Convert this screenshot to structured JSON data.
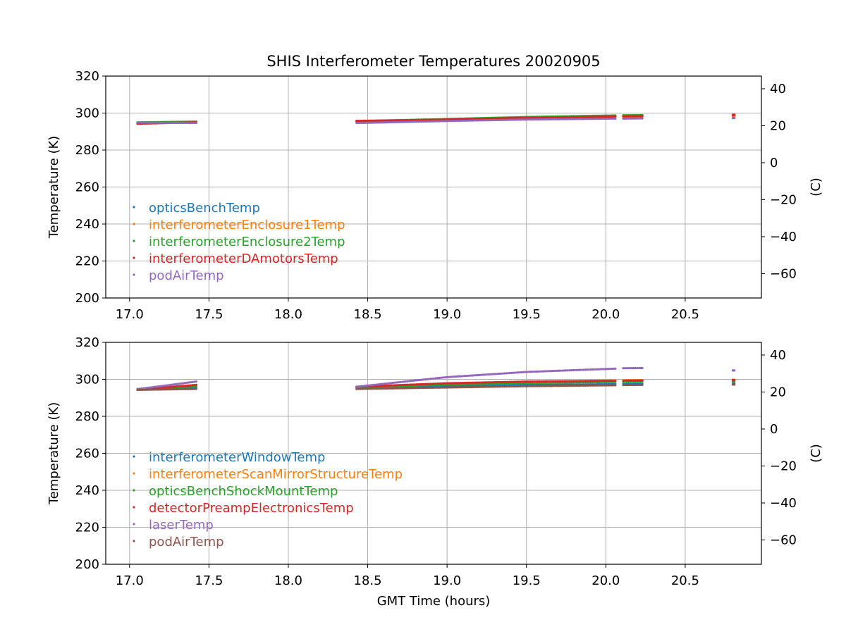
{
  "chart_data": [
    {
      "type": "scatter",
      "title": "SHIS Interferometer Temperatures 20020905",
      "xlabel": "",
      "ylabel": "Temperature (K)",
      "ylabel_right": "(C)",
      "xlim": [
        16.85,
        20.98
      ],
      "ylim": [
        200,
        320
      ],
      "ylim_right": [
        -73.15,
        46.85
      ],
      "x_ticks": [
        "17.0",
        "17.5",
        "18.0",
        "18.5",
        "19.0",
        "19.5",
        "20.0",
        "20.5"
      ],
      "y_ticks": [
        "200",
        "220",
        "240",
        "260",
        "280",
        "300",
        "320"
      ],
      "y_ticks_right": [
        "−60",
        "−40",
        "−20",
        "0",
        "20",
        "40"
      ],
      "grid": true,
      "legend_position": "lower-left",
      "segments": [
        [
          17.05,
          17.42
        ],
        [
          18.43,
          20.06
        ],
        [
          20.11,
          20.23
        ],
        [
          20.8,
          20.81
        ]
      ],
      "series": [
        {
          "name": "opticsBenchTemp",
          "color": "#1f77b4",
          "x": [
            17.05,
            17.42,
            18.43,
            19.0,
            19.5,
            20.06,
            20.11,
            20.23,
            20.8
          ],
          "y": [
            294.8,
            295.2,
            295.4,
            296.6,
            297.6,
            298.4,
            298.5,
            298.6,
            298.8
          ]
        },
        {
          "name": "interferometerEnclosure1Temp",
          "color": "#ff7f0e",
          "x": [
            17.05,
            17.42,
            18.43,
            19.0,
            19.5,
            20.06,
            20.11,
            20.23,
            20.8
          ],
          "y": [
            294.6,
            295.0,
            295.2,
            296.3,
            297.2,
            297.9,
            298.0,
            298.1,
            298.3
          ]
        },
        {
          "name": "interferometerEnclosure2Temp",
          "color": "#2ca02c",
          "x": [
            17.05,
            17.42,
            18.43,
            19.0,
            19.5,
            20.06,
            20.11,
            20.23,
            20.8
          ],
          "y": [
            295.0,
            295.4,
            295.6,
            296.8,
            297.9,
            298.7,
            298.8,
            298.9,
            299.1
          ]
        },
        {
          "name": "interferometerDAmotorsTemp",
          "color": "#d62728",
          "x": [
            17.05,
            17.42,
            18.43,
            19.0,
            19.5,
            20.06,
            20.11,
            20.23,
            20.8
          ],
          "y": [
            294.2,
            295.0,
            295.8,
            296.5,
            297.4,
            298.1,
            298.2,
            298.3,
            299.0
          ]
        },
        {
          "name": "podAirTemp",
          "color": "#9467bd",
          "x": [
            17.05,
            17.42,
            18.43,
            19.0,
            19.5,
            20.06,
            20.11,
            20.23,
            20.8
          ],
          "y": [
            294.9,
            294.6,
            294.6,
            295.7,
            296.5,
            297.0,
            297.0,
            297.1,
            297.3
          ]
        }
      ]
    },
    {
      "type": "scatter",
      "title": "",
      "xlabel": "GMT Time (hours)",
      "ylabel": "Temperature (K)",
      "ylabel_right": "(C)",
      "xlim": [
        16.85,
        20.98
      ],
      "ylim": [
        200,
        320
      ],
      "ylim_right": [
        -73.15,
        46.85
      ],
      "x_ticks": [
        "17.0",
        "17.5",
        "18.0",
        "18.5",
        "19.0",
        "19.5",
        "20.0",
        "20.5"
      ],
      "y_ticks": [
        "200",
        "220",
        "240",
        "260",
        "280",
        "300",
        "320"
      ],
      "y_ticks_right": [
        "−60",
        "−40",
        "−20",
        "0",
        "20",
        "40"
      ],
      "grid": true,
      "legend_position": "lower-left",
      "segments": [
        [
          17.05,
          17.42
        ],
        [
          18.43,
          20.06
        ],
        [
          20.11,
          20.23
        ],
        [
          20.8,
          20.81
        ]
      ],
      "series": [
        {
          "name": "interferometerWindowTemp",
          "color": "#1f77b4",
          "x": [
            17.05,
            17.42,
            18.43,
            19.0,
            19.5,
            20.06,
            20.11,
            20.23,
            20.8
          ],
          "y": [
            294.6,
            295.3,
            295.4,
            296.3,
            297.0,
            297.4,
            297.5,
            297.6,
            297.8
          ]
        },
        {
          "name": "interferometerScanMirrorStructureTemp",
          "color": "#ff7f0e",
          "x": [
            17.05,
            17.42,
            18.43,
            19.0,
            19.5,
            20.06,
            20.11,
            20.23,
            20.8
          ],
          "y": [
            294.8,
            296.8,
            295.8,
            297.8,
            298.6,
            299.4,
            299.5,
            299.6,
            299.8
          ]
        },
        {
          "name": "opticsBenchShockMountTemp",
          "color": "#2ca02c",
          "x": [
            17.05,
            17.42,
            18.43,
            19.0,
            19.5,
            20.06,
            20.11,
            20.23,
            20.8
          ],
          "y": [
            294.7,
            296.2,
            295.6,
            297.2,
            298.0,
            298.6,
            298.7,
            298.8,
            299.0
          ]
        },
        {
          "name": "detectorPreampElectronicsTemp",
          "color": "#d62728",
          "x": [
            17.05,
            17.42,
            18.43,
            19.0,
            19.5,
            20.06,
            20.11,
            20.23,
            20.8
          ],
          "y": [
            294.5,
            297.0,
            296.0,
            297.9,
            298.8,
            299.2,
            299.3,
            299.4,
            299.6
          ]
        },
        {
          "name": "laserTemp",
          "color": "#9467bd",
          "x": [
            17.05,
            17.42,
            18.43,
            18.8,
            19.0,
            19.5,
            20.06,
            20.11,
            20.23,
            20.8
          ],
          "y": [
            294.7,
            298.8,
            296.0,
            299.4,
            301.2,
            304.0,
            305.8,
            306.0,
            306.1,
            304.8
          ]
        },
        {
          "name": "podAirTemp",
          "color": "#8c564b",
          "x": [
            17.05,
            17.42,
            18.43,
            19.0,
            19.5,
            20.06,
            20.11,
            20.23,
            20.8
          ],
          "y": [
            294.3,
            294.8,
            294.8,
            295.6,
            296.3,
            296.8,
            296.9,
            297.0,
            297.2
          ]
        }
      ]
    }
  ]
}
